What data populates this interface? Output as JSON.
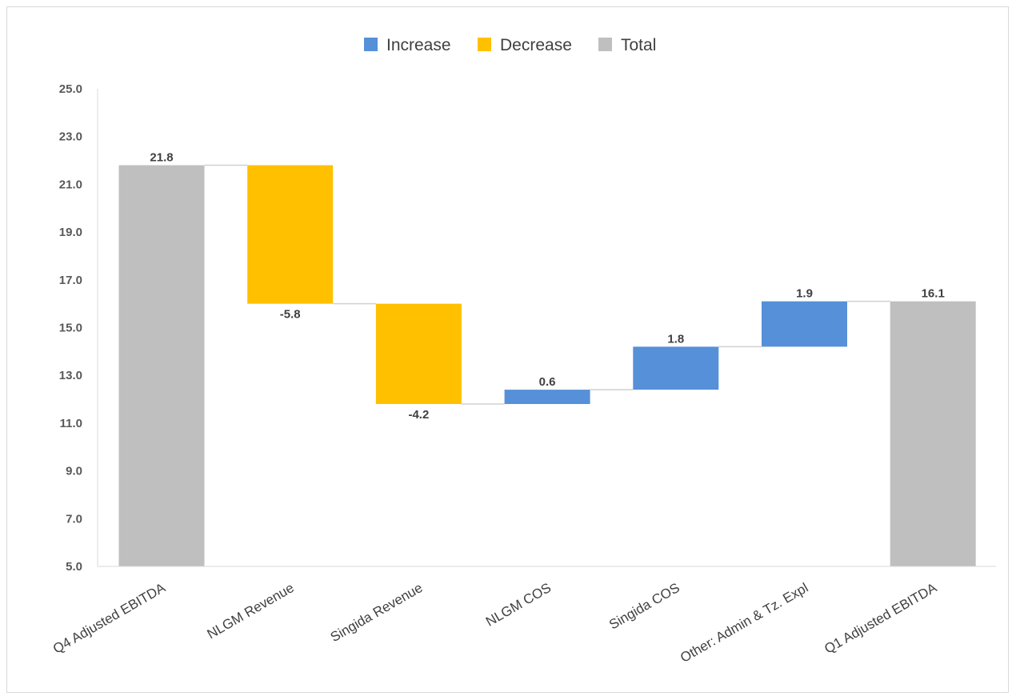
{
  "chart_data": {
    "type": "bar",
    "subtype": "waterfall",
    "title": "",
    "xlabel": "",
    "ylabel": "",
    "ylim": [
      5.0,
      25.0
    ],
    "yticks": [
      "5.0",
      "7.0",
      "9.0",
      "11.0",
      "13.0",
      "15.0",
      "17.0",
      "19.0",
      "21.0",
      "23.0",
      "25.0"
    ],
    "grid": false,
    "legend_position": "top",
    "legend": [
      {
        "name": "Increase",
        "color": "#5690d8"
      },
      {
        "name": "Decrease",
        "color": "#ffc000"
      },
      {
        "name": "Total",
        "color": "#bfbfbf"
      }
    ],
    "categories": [
      "Q4 Adjusted EBITDA",
      "NLGM Revenue",
      "Singida Revenue",
      "NLGM COS",
      "Singida COS",
      "Other: Admin & Tz. Expl",
      "Q1 Adjusted EBITDA"
    ],
    "steps": [
      {
        "kind": "total",
        "value": 21.8,
        "label": "21.8"
      },
      {
        "kind": "decrease",
        "value": -5.8,
        "label": "-5.8"
      },
      {
        "kind": "decrease",
        "value": -4.2,
        "label": "-4.2"
      },
      {
        "kind": "increase",
        "value": 0.6,
        "label": "0.6"
      },
      {
        "kind": "increase",
        "value": 1.8,
        "label": "1.8"
      },
      {
        "kind": "increase",
        "value": 1.9,
        "label": "1.9"
      },
      {
        "kind": "total",
        "value": 16.1,
        "label": "16.1"
      }
    ]
  }
}
